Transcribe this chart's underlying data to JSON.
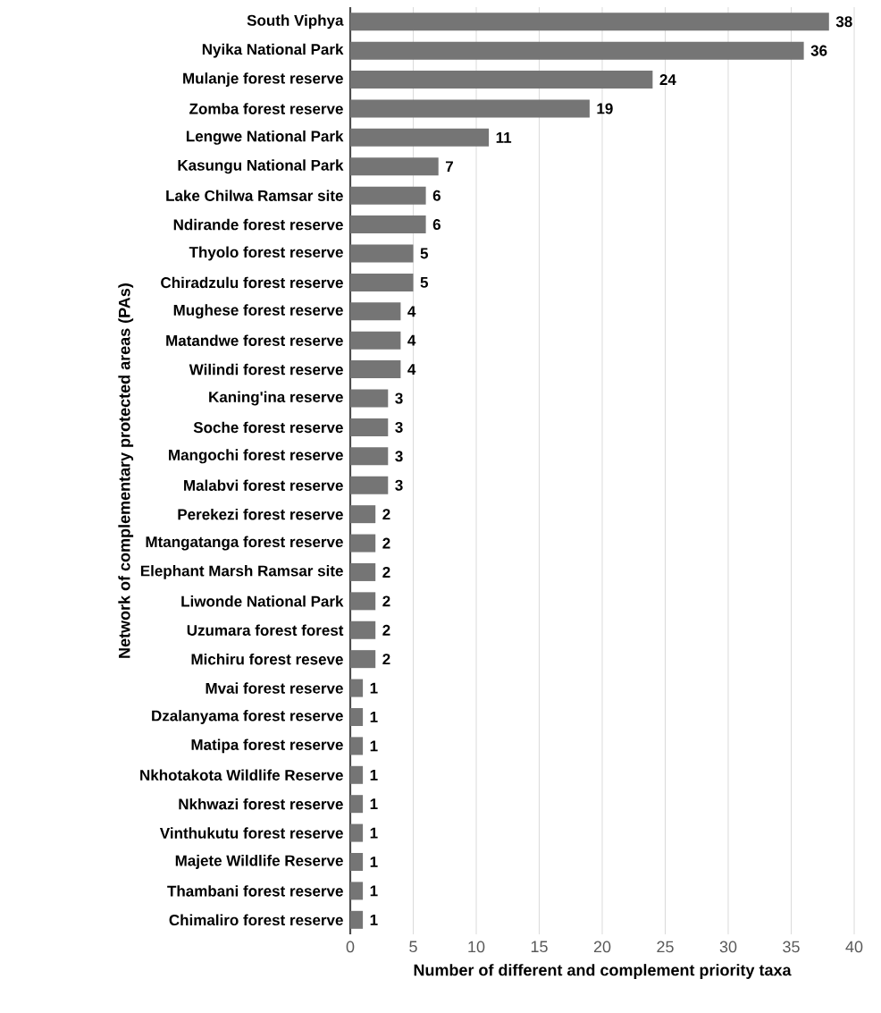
{
  "chart_data": {
    "type": "bar",
    "orientation": "horizontal",
    "xlabel": "Number of different and complement priority taxa",
    "ylabel": "Network of complementary protected areas (PAs)",
    "categories": [
      "South Viphya",
      "Nyika National Park",
      "Mulanje forest reserve",
      "Zomba forest reserve",
      "Lengwe National Park",
      "Kasungu National Park",
      "Lake Chilwa Ramsar site",
      "Ndirande forest reserve",
      "Thyolo forest reserve",
      "Chiradzulu forest reserve",
      "Mughese forest reserve",
      "Matandwe forest reserve",
      "Wilindi forest reserve",
      "Kaning'ina reserve",
      "Soche forest reserve",
      "Mangochi forest reserve",
      "Malabvi forest reserve",
      "Perekezi forest reserve",
      "Mtangatanga forest reserve",
      "Elephant Marsh Ramsar site",
      "Liwonde National Park",
      "Uzumara forest forest",
      "Michiru forest reseve",
      "Mvai forest reserve",
      "Dzalanyama forest reserve",
      "Matipa forest reserve",
      "Nkhotakota Wildlife Reserve",
      "Nkhwazi forest reserve",
      "Vinthukutu forest reserve",
      "Majete Wildlife Reserve",
      "Thambani forest reserve",
      "Chimaliro forest reserve"
    ],
    "values": [
      38,
      36,
      24,
      19,
      11,
      7,
      6,
      6,
      5,
      5,
      4,
      4,
      4,
      3,
      3,
      3,
      3,
      2,
      2,
      2,
      2,
      2,
      2,
      1,
      1,
      1,
      1,
      1,
      1,
      1,
      1,
      1
    ],
    "color": "#757575",
    "xlim": [
      0,
      40
    ],
    "xticks": [
      0,
      5,
      10,
      15,
      20,
      25,
      30,
      35,
      40
    ],
    "grid": "x",
    "data_labels": true
  }
}
